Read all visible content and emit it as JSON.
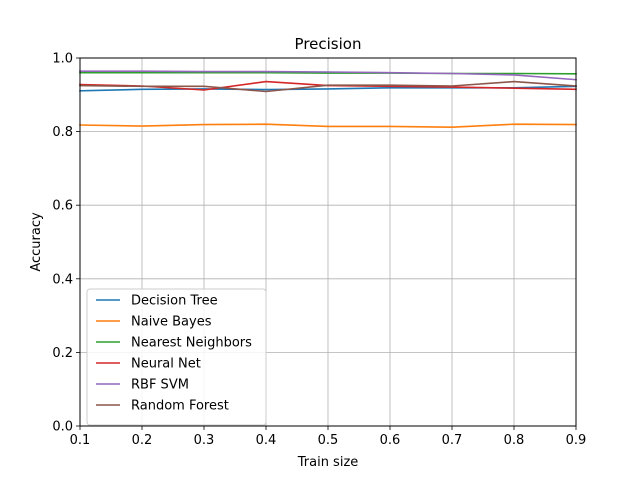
{
  "chart_data": {
    "type": "line",
    "title": "Precision",
    "xlabel": "Train size",
    "ylabel": "Accuracy",
    "x": [
      0.1,
      0.2,
      0.3,
      0.4,
      0.5,
      0.6,
      0.7,
      0.8,
      0.9
    ],
    "xlim": [
      0.1,
      0.9
    ],
    "ylim": [
      0.0,
      1.0
    ],
    "xticks": [
      "0.1",
      "0.2",
      "0.3",
      "0.4",
      "0.5",
      "0.6",
      "0.7",
      "0.8",
      "0.9"
    ],
    "yticks": [
      "0.0",
      "0.2",
      "0.4",
      "0.6",
      "0.8",
      "1.0"
    ],
    "grid": true,
    "legend_position": "lower-left",
    "series": [
      {
        "name": "Decision Tree",
        "color": "#1f77b4",
        "values": [
          0.911,
          0.915,
          0.916,
          0.914,
          0.916,
          0.919,
          0.919,
          0.919,
          0.923
        ]
      },
      {
        "name": "Naive Bayes",
        "color": "#ff7f0e",
        "values": [
          0.818,
          0.815,
          0.819,
          0.82,
          0.814,
          0.814,
          0.812,
          0.82,
          0.819
        ]
      },
      {
        "name": "Nearest Neighbors",
        "color": "#2ca02c",
        "values": [
          0.96,
          0.96,
          0.96,
          0.96,
          0.959,
          0.959,
          0.958,
          0.958,
          0.957
        ]
      },
      {
        "name": "Neural Net",
        "color": "#d62728",
        "values": [
          0.928,
          0.924,
          0.913,
          0.936,
          0.925,
          0.923,
          0.921,
          0.918,
          0.915
        ]
      },
      {
        "name": "RBF SVM",
        "color": "#9467bd",
        "values": [
          0.964,
          0.964,
          0.963,
          0.963,
          0.962,
          0.96,
          0.958,
          0.954,
          0.941
        ]
      },
      {
        "name": "Random Forest",
        "color": "#8c564b",
        "values": [
          0.925,
          0.923,
          0.923,
          0.909,
          0.926,
          0.926,
          0.924,
          0.936,
          0.924
        ]
      }
    ]
  }
}
